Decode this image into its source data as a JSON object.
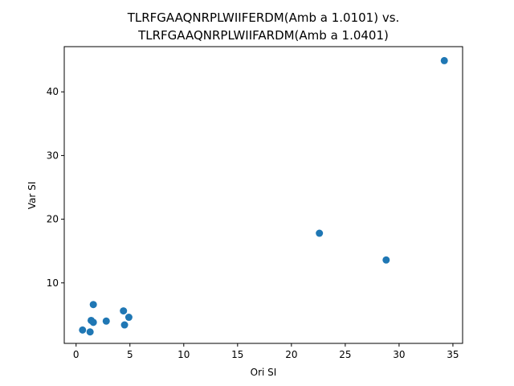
{
  "chart_data": {
    "type": "scatter",
    "title_line1": "TLRFGAAQNRPLWIIFERDM(Amb a 1.0101) vs.",
    "title_line2": "TLRFGAAQNRPLWIIFARDM(Amb a 1.0401)",
    "xlabel": "Ori SI",
    "ylabel": "Var SI",
    "xlim": [
      -1.1,
      35.9
    ],
    "ylim": [
      0.5,
      47.1
    ],
    "xticks": [
      0,
      5,
      10,
      15,
      20,
      25,
      30,
      35
    ],
    "yticks": [
      10,
      20,
      30,
      40
    ],
    "grid": false,
    "color": "#1f77b4",
    "points": [
      {
        "x": 0.6,
        "y": 2.6
      },
      {
        "x": 1.3,
        "y": 2.3
      },
      {
        "x": 1.4,
        "y": 4.1
      },
      {
        "x": 1.6,
        "y": 3.8
      },
      {
        "x": 1.6,
        "y": 6.6
      },
      {
        "x": 2.8,
        "y": 4.0
      },
      {
        "x": 4.4,
        "y": 5.6
      },
      {
        "x": 4.5,
        "y": 3.4
      },
      {
        "x": 4.9,
        "y": 4.6
      },
      {
        "x": 22.6,
        "y": 17.8
      },
      {
        "x": 28.8,
        "y": 13.6
      },
      {
        "x": 34.2,
        "y": 44.9
      }
    ]
  }
}
